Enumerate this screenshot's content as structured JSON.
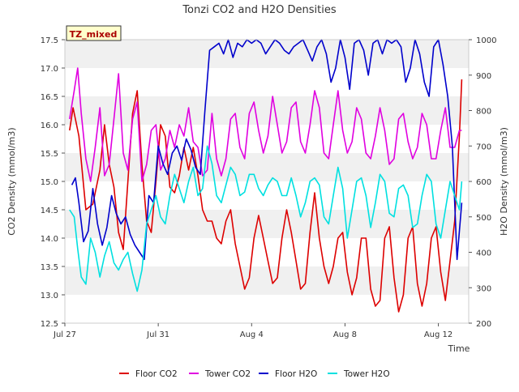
{
  "chart_data": {
    "type": "line",
    "title": "Tonzi CO2 and H2O Densities",
    "badge": "TZ_mixed",
    "xlabel": "Time",
    "ylabel_left": "CO2 Density (mmol/m3)",
    "ylabel_right": "H2O Density (mmol/m3)",
    "xlim": [
      0,
      17.3
    ],
    "ylim_left": [
      12.5,
      17.5
    ],
    "ylim_right": [
      200,
      1000
    ],
    "x_ticks": [
      {
        "value": 0,
        "label": "Jul 27"
      },
      {
        "value": 4,
        "label": "Jul 31"
      },
      {
        "value": 8,
        "label": "Aug 4"
      },
      {
        "value": 12,
        "label": "Aug 8"
      },
      {
        "value": 16,
        "label": "Aug 12"
      }
    ],
    "y_ticks_left": [
      "12.5",
      "13.0",
      "13.5",
      "14.0",
      "14.5",
      "15.0",
      "15.5",
      "16.0",
      "16.5",
      "17.0",
      "17.5"
    ],
    "y_ticks_right": [
      "200",
      "300",
      "400",
      "500",
      "600",
      "700",
      "800",
      "900",
      "1000"
    ],
    "grid": "horizontal bands",
    "legend_position": "bottom",
    "series": [
      {
        "name": "Floor CO2",
        "axis": "left",
        "color": "#dd0000",
        "x": [
          0.2,
          0.35,
          0.6,
          0.9,
          1.2,
          1.5,
          1.7,
          1.9,
          2.1,
          2.3,
          2.5,
          2.7,
          2.9,
          3.1,
          3.3,
          3.5,
          3.7,
          3.9,
          4.1,
          4.3,
          4.5,
          4.7,
          4.9,
          5.1,
          5.3,
          5.5,
          5.7,
          5.9,
          6.1,
          6.3,
          6.5,
          6.7,
          6.9,
          7.1,
          7.3,
          7.5,
          7.7,
          7.9,
          8.1,
          8.3,
          8.5,
          8.7,
          8.9,
          9.1,
          9.3,
          9.5,
          9.7,
          9.9,
          10.1,
          10.3,
          10.5,
          10.7,
          10.9,
          11.1,
          11.3,
          11.5,
          11.7,
          11.9,
          12.1,
          12.3,
          12.5,
          12.7,
          12.9,
          13.1,
          13.3,
          13.5,
          13.7,
          13.9,
          14.1,
          14.3,
          14.5,
          14.7,
          14.9,
          15.1,
          15.3,
          15.5,
          15.7,
          15.9,
          16.1,
          16.3,
          16.5,
          16.7,
          16.9,
          17.0
        ],
        "values": [
          15.9,
          16.3,
          15.8,
          14.5,
          14.6,
          15.2,
          16.0,
          15.3,
          14.9,
          14.1,
          13.8,
          15.0,
          16.2,
          16.6,
          15.3,
          14.3,
          14.1,
          15.0,
          16.0,
          15.8,
          14.9,
          14.8,
          15.1,
          15.6,
          15.2,
          15.6,
          15.1,
          14.5,
          14.3,
          14.3,
          14.0,
          13.9,
          14.3,
          14.5,
          13.9,
          13.5,
          13.1,
          13.3,
          14.0,
          14.4,
          14.0,
          13.6,
          13.2,
          13.3,
          14.0,
          14.5,
          14.1,
          13.6,
          13.1,
          13.2,
          14.1,
          14.8,
          14.0,
          13.5,
          13.2,
          13.5,
          14.0,
          14.1,
          13.4,
          13.0,
          13.3,
          14.0,
          14.0,
          13.1,
          12.8,
          12.9,
          14.0,
          14.2,
          13.3,
          12.7,
          13.0,
          14.0,
          14.2,
          13.2,
          12.8,
          13.2,
          14.0,
          14.2,
          13.4,
          12.9,
          13.6,
          14.3,
          15.8,
          16.8
        ]
      },
      {
        "name": "Tower CO2",
        "axis": "left",
        "color": "#e000e0",
        "x": [
          0.2,
          0.4,
          0.55,
          0.7,
          0.9,
          1.1,
          1.3,
          1.5,
          1.7,
          1.9,
          2.1,
          2.3,
          2.5,
          2.7,
          2.9,
          3.1,
          3.3,
          3.5,
          3.7,
          3.9,
          4.1,
          4.3,
          4.5,
          4.7,
          4.9,
          5.1,
          5.3,
          5.5,
          5.7,
          5.9,
          6.1,
          6.3,
          6.5,
          6.7,
          6.9,
          7.1,
          7.3,
          7.5,
          7.7,
          7.9,
          8.1,
          8.3,
          8.5,
          8.7,
          8.9,
          9.1,
          9.3,
          9.5,
          9.7,
          9.9,
          10.1,
          10.3,
          10.5,
          10.7,
          10.9,
          11.1,
          11.3,
          11.5,
          11.7,
          11.9,
          12.1,
          12.3,
          12.5,
          12.7,
          12.9,
          13.1,
          13.3,
          13.5,
          13.7,
          13.9,
          14.1,
          14.3,
          14.5,
          14.7,
          14.9,
          15.1,
          15.3,
          15.5,
          15.7,
          15.9,
          16.1,
          16.3,
          16.5,
          16.7,
          16.9,
          17.0
        ],
        "values": [
          16.1,
          16.6,
          17.0,
          16.2,
          15.4,
          15.0,
          15.6,
          16.3,
          15.1,
          15.3,
          16.1,
          16.9,
          15.5,
          15.2,
          16.1,
          16.4,
          15.0,
          15.3,
          15.9,
          16.0,
          15.2,
          15.4,
          15.9,
          15.6,
          16.0,
          15.8,
          16.3,
          15.7,
          15.6,
          15.1,
          15.2,
          16.2,
          15.4,
          15.1,
          15.4,
          16.1,
          16.2,
          15.6,
          15.4,
          16.2,
          16.4,
          15.9,
          15.5,
          15.8,
          16.5,
          16.0,
          15.5,
          15.7,
          16.3,
          16.4,
          15.7,
          15.5,
          16.0,
          16.6,
          16.3,
          15.5,
          15.4,
          16.0,
          16.6,
          15.9,
          15.5,
          15.7,
          16.3,
          16.1,
          15.5,
          15.4,
          15.8,
          16.3,
          15.9,
          15.3,
          15.4,
          16.1,
          16.2,
          15.7,
          15.4,
          15.6,
          16.2,
          16.0,
          15.4,
          15.4,
          15.9,
          16.3,
          15.6,
          15.6,
          15.9,
          15.9
        ]
      },
      {
        "name": "Floor H2O",
        "axis": "right",
        "color": "#0000cc",
        "x": [
          0.3,
          0.45,
          0.6,
          0.8,
          1.0,
          1.2,
          1.4,
          1.6,
          1.8,
          2.0,
          2.2,
          2.4,
          2.6,
          2.8,
          3.0,
          3.2,
          3.4,
          3.6,
          3.8,
          4.0,
          4.2,
          4.4,
          4.6,
          4.8,
          5.0,
          5.2,
          5.4,
          5.6,
          5.8,
          6.0,
          6.2,
          6.4,
          6.6,
          6.8,
          7.0,
          7.2,
          7.4,
          7.6,
          7.8,
          8.0,
          8.2,
          8.4,
          8.6,
          8.8,
          9.0,
          9.2,
          9.4,
          9.6,
          9.8,
          10.0,
          10.2,
          10.4,
          10.6,
          10.8,
          11.0,
          11.2,
          11.4,
          11.6,
          11.8,
          12.0,
          12.2,
          12.4,
          12.6,
          12.8,
          13.0,
          13.2,
          13.4,
          13.6,
          13.8,
          14.0,
          14.2,
          14.4,
          14.6,
          14.8,
          15.0,
          15.2,
          15.4,
          15.6,
          15.8,
          16.0,
          16.2,
          16.4,
          16.6,
          16.8,
          17.0
        ],
        "values": [
          590,
          610,
          540,
          430,
          460,
          580,
          480,
          420,
          470,
          560,
          510,
          480,
          500,
          450,
          420,
          400,
          380,
          560,
          540,
          700,
          650,
          620,
          680,
          700,
          660,
          720,
          690,
          640,
          620,
          800,
          970,
          980,
          990,
          960,
          1000,
          950,
          990,
          980,
          1000,
          990,
          1000,
          990,
          960,
          980,
          1000,
          990,
          970,
          960,
          980,
          990,
          1000,
          970,
          940,
          980,
          1000,
          960,
          880,
          920,
          1000,
          950,
          860,
          990,
          1000,
          970,
          900,
          990,
          1000,
          960,
          1000,
          990,
          1000,
          980,
          880,
          920,
          1000,
          960,
          880,
          840,
          980,
          1000,
          930,
          840,
          700,
          380,
          540
        ]
      },
      {
        "name": "Tower H2O",
        "axis": "right",
        "color": "#00e0e0",
        "x": [
          0.2,
          0.4,
          0.55,
          0.7,
          0.9,
          1.1,
          1.3,
          1.5,
          1.7,
          1.9,
          2.1,
          2.3,
          2.5,
          2.7,
          2.9,
          3.1,
          3.3,
          3.5,
          3.7,
          3.9,
          4.1,
          4.3,
          4.5,
          4.7,
          4.9,
          5.1,
          5.3,
          5.5,
          5.7,
          5.9,
          6.1,
          6.3,
          6.5,
          6.7,
          6.9,
          7.1,
          7.3,
          7.5,
          7.7,
          7.9,
          8.1,
          8.3,
          8.5,
          8.7,
          8.9,
          9.1,
          9.3,
          9.5,
          9.7,
          9.9,
          10.1,
          10.3,
          10.5,
          10.7,
          10.9,
          11.1,
          11.3,
          11.5,
          11.7,
          11.9,
          12.1,
          12.3,
          12.5,
          12.7,
          12.9,
          13.1,
          13.3,
          13.5,
          13.7,
          13.9,
          14.1,
          14.3,
          14.5,
          14.7,
          14.9,
          15.1,
          15.3,
          15.5,
          15.7,
          15.9,
          16.1,
          16.3,
          16.5,
          16.7,
          16.9,
          17.0
        ],
        "values": [
          520,
          500,
          410,
          330,
          310,
          440,
          400,
          330,
          390,
          430,
          370,
          350,
          380,
          400,
          340,
          290,
          350,
          480,
          520,
          560,
          500,
          480,
          560,
          620,
          580,
          540,
          600,
          640,
          560,
          580,
          700,
          650,
          560,
          540,
          590,
          640,
          620,
          560,
          570,
          620,
          620,
          580,
          560,
          590,
          610,
          600,
          560,
          560,
          610,
          560,
          500,
          540,
          600,
          610,
          590,
          500,
          480,
          560,
          640,
          580,
          440,
          520,
          600,
          610,
          560,
          470,
          540,
          620,
          600,
          510,
          500,
          580,
          590,
          560,
          470,
          480,
          560,
          620,
          600,
          480,
          440,
          520,
          600,
          560,
          520,
          600
        ]
      }
    ]
  }
}
